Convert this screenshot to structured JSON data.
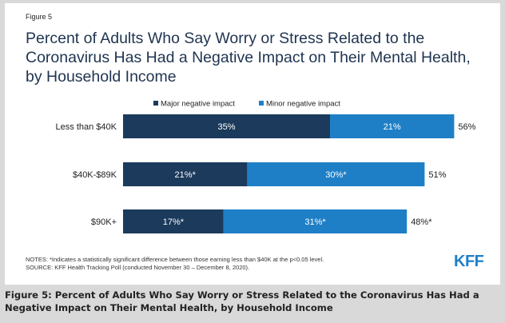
{
  "figure_label": "Figure 5",
  "title": "Percent of Adults Who Say Worry or Stress Related to the\nCoronavirus Has Had a Negative Impact on Their Mental Health,\nby Household Income",
  "notes": "NOTES: *Indicates a statistically significant difference between those earning less than $40K at the p<0.05 level.",
  "source": "SOURCE: KFF Health Tracking Poll (conducted November 30 – December 8, 2020).",
  "logo": "KFF",
  "caption": "Figure 5: Percent of Adults Who Say Worry or Stress Related to the Coronavirus Has Had a Negative Impact on Their Mental Health, by Household Income",
  "colors": {
    "major": "#1b3a5c",
    "minor": "#1f7fc6",
    "background": "#d9d9d9"
  },
  "chart_data": {
    "type": "bar",
    "orientation": "horizontal",
    "stacked": true,
    "categories": [
      "Less than $40K",
      "$40K-$89K",
      "$90K+"
    ],
    "series": [
      {
        "name": "Major negative impact",
        "values": [
          35,
          21,
          17
        ],
        "labels": [
          "35%",
          "21%*",
          "17%*"
        ],
        "color": "#1b3a5c"
      },
      {
        "name": "Minor negative impact",
        "values": [
          21,
          30,
          31
        ],
        "labels": [
          "21%",
          "30%*",
          "31%*"
        ],
        "color": "#1f7fc6"
      }
    ],
    "totals": [
      "56%",
      "51%",
      "48%*"
    ],
    "legend": "top",
    "grid": false
  }
}
